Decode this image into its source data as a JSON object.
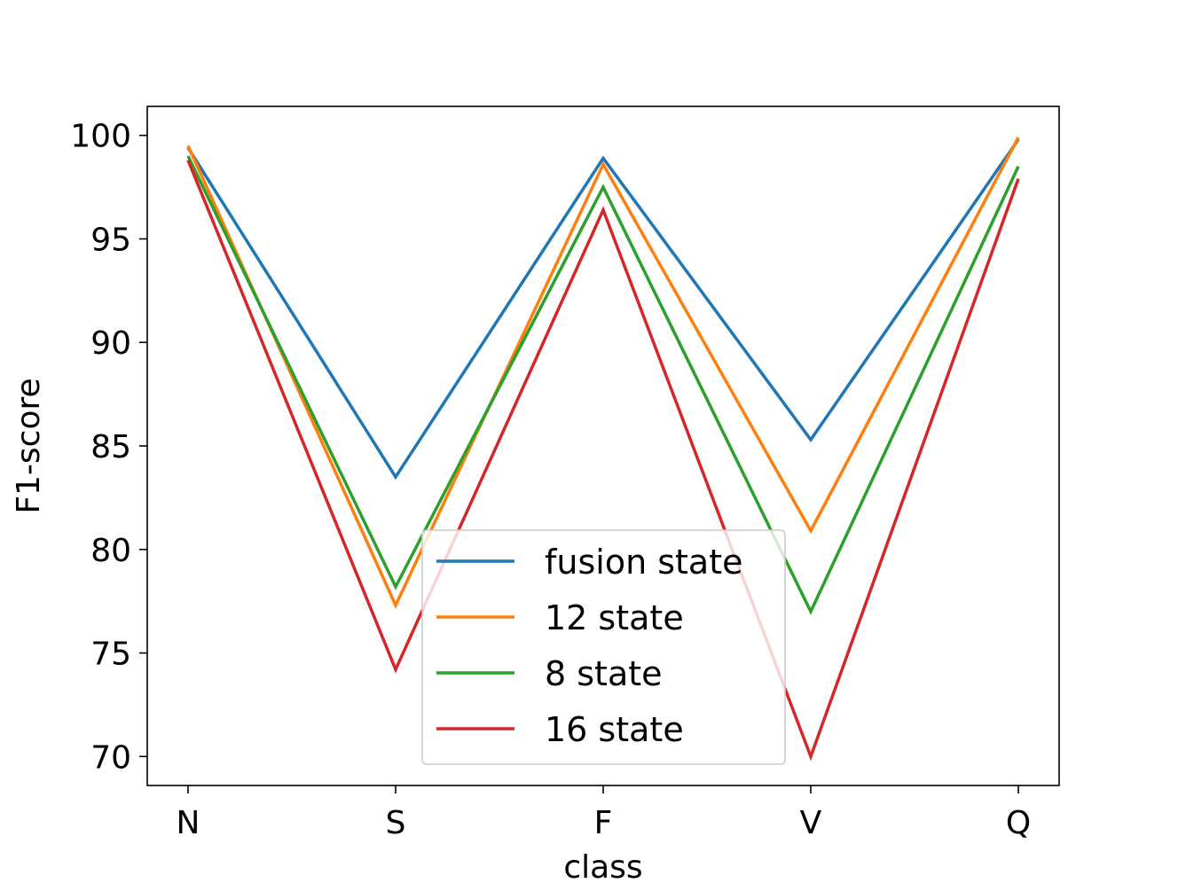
{
  "chart_data": {
    "type": "line",
    "categories": [
      "N",
      "S",
      "F",
      "V",
      "Q"
    ],
    "series": [
      {
        "name": "fusion state",
        "color": "#1f77b4",
        "values": [
          99.4,
          83.5,
          98.9,
          85.3,
          99.8
        ]
      },
      {
        "name": "12 state",
        "color": "#ff7f0e",
        "values": [
          99.5,
          77.3,
          98.6,
          80.9,
          99.9
        ]
      },
      {
        "name": "8 state",
        "color": "#2ca02c",
        "values": [
          99.0,
          78.2,
          97.5,
          77.0,
          98.5
        ]
      },
      {
        "name": "16 state",
        "color": "#d62728",
        "values": [
          98.8,
          74.2,
          96.4,
          70.0,
          97.9
        ]
      }
    ],
    "xlabel": "class",
    "ylabel": "F1-score",
    "ylim": [
      68.6,
      101.4
    ],
    "yticks": [
      "70",
      "75",
      "80",
      "85",
      "90",
      "95",
      "100"
    ],
    "legend_position": "lower-center",
    "grid": false
  }
}
